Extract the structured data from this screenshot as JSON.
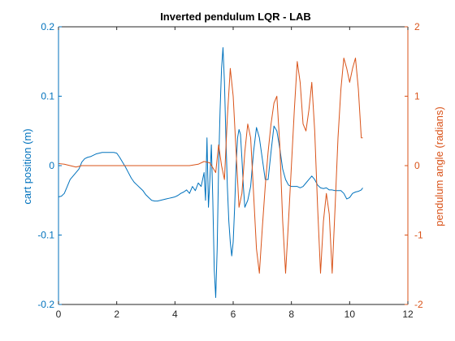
{
  "chart_data": {
    "type": "line",
    "title": "Inverted pendulum LQR - LAB",
    "xlabel": "",
    "xlim": [
      0,
      12
    ],
    "xticks": [
      0,
      2,
      4,
      6,
      8,
      10,
      12
    ],
    "left_axis": {
      "label": "cart position (m)",
      "ylim": [
        -0.2,
        0.2
      ],
      "ticks": [
        -0.2,
        -0.1,
        0,
        0.1,
        0.2
      ],
      "tick_labels": [
        "-0.2",
        "-0.1",
        "0",
        "0.1",
        "0.2"
      ],
      "color": "#0072BD"
    },
    "right_axis": {
      "label": "pendulum angle (radians)",
      "ylim": [
        -2,
        2
      ],
      "ticks": [
        -2,
        -1,
        0,
        1,
        2
      ],
      "tick_labels": [
        "-2",
        "-1",
        "0",
        "1",
        "2"
      ],
      "color": "#D95319"
    },
    "grid": false,
    "series": [
      {
        "axis": "left",
        "color": "#0072BD",
        "x": [
          0.0,
          0.1,
          0.2,
          0.3,
          0.4,
          0.5,
          0.6,
          0.7,
          0.8,
          0.9,
          1.0,
          1.1,
          1.2,
          1.3,
          1.4,
          1.5,
          1.6,
          1.7,
          1.8,
          1.9,
          2.0,
          2.1,
          2.2,
          2.3,
          2.4,
          2.5,
          2.6,
          2.7,
          2.8,
          2.9,
          3.0,
          3.1,
          3.2,
          3.3,
          3.4,
          3.5,
          3.6,
          3.7,
          3.8,
          3.9,
          4.0,
          4.1,
          4.2,
          4.3,
          4.4,
          4.5,
          4.6,
          4.7,
          4.8,
          4.9,
          5.0,
          5.05,
          5.1,
          5.15,
          5.2,
          5.25,
          5.3,
          5.35,
          5.4,
          5.45,
          5.5,
          5.55,
          5.6,
          5.65,
          5.7,
          5.75,
          5.8,
          5.85,
          5.9,
          5.95,
          6.0,
          6.05,
          6.1,
          6.15,
          6.2,
          6.25,
          6.3,
          6.35,
          6.4,
          6.5,
          6.6,
          6.7,
          6.8,
          6.9,
          7.0,
          7.1,
          7.2,
          7.3,
          7.4,
          7.5,
          7.6,
          7.7,
          7.8,
          7.9,
          8.0,
          8.1,
          8.2,
          8.3,
          8.4,
          8.5,
          8.6,
          8.7,
          8.8,
          8.9,
          9.0,
          9.1,
          9.2,
          9.3,
          9.4,
          9.5,
          9.6,
          9.7,
          9.8,
          9.9,
          10.0,
          10.1,
          10.2,
          10.3,
          10.4,
          10.45
        ],
        "y": [
          -0.045,
          -0.044,
          -0.04,
          -0.03,
          -0.02,
          -0.015,
          -0.01,
          -0.005,
          0.005,
          0.01,
          0.012,
          0.013,
          0.015,
          0.017,
          0.018,
          0.019,
          0.019,
          0.019,
          0.019,
          0.019,
          0.018,
          0.012,
          0.005,
          -0.002,
          -0.01,
          -0.018,
          -0.024,
          -0.028,
          -0.032,
          -0.036,
          -0.042,
          -0.046,
          -0.05,
          -0.051,
          -0.051,
          -0.05,
          -0.049,
          -0.048,
          -0.047,
          -0.046,
          -0.045,
          -0.043,
          -0.04,
          -0.038,
          -0.035,
          -0.04,
          -0.03,
          -0.036,
          -0.025,
          -0.03,
          -0.01,
          -0.05,
          0.04,
          -0.06,
          -0.02,
          0.03,
          -0.05,
          -0.15,
          -0.19,
          -0.12,
          0.0,
          0.08,
          0.14,
          0.17,
          0.12,
          0.04,
          -0.03,
          -0.08,
          -0.11,
          -0.13,
          -0.11,
          -0.06,
          0.0,
          0.04,
          0.052,
          0.045,
          0.01,
          -0.03,
          -0.06,
          -0.05,
          -0.03,
          0.02,
          0.055,
          0.04,
          0.01,
          -0.02,
          -0.02,
          0.02,
          0.057,
          0.05,
          0.025,
          -0.005,
          -0.02,
          -0.028,
          -0.03,
          -0.03,
          -0.03,
          -0.032,
          -0.03,
          -0.025,
          -0.02,
          -0.015,
          -0.02,
          -0.028,
          -0.032,
          -0.033,
          -0.032,
          -0.035,
          -0.035,
          -0.036,
          -0.036,
          -0.036,
          -0.04,
          -0.048,
          -0.046,
          -0.04,
          -0.038,
          -0.037,
          -0.035,
          -0.032
        ]
      },
      {
        "axis": "right",
        "color": "#D95319",
        "x": [
          0.0,
          0.2,
          0.4,
          0.6,
          0.8,
          1.0,
          1.5,
          2.0,
          2.5,
          3.0,
          3.5,
          4.0,
          4.5,
          4.8,
          5.0,
          5.2,
          5.4,
          5.5,
          5.6,
          5.7,
          5.8,
          5.9,
          6.0,
          6.1,
          6.2,
          6.3,
          6.4,
          6.5,
          6.6,
          6.7,
          6.8,
          6.9,
          7.0,
          7.1,
          7.2,
          7.3,
          7.4,
          7.5,
          7.6,
          7.7,
          7.8,
          7.9,
          8.0,
          8.1,
          8.2,
          8.3,
          8.4,
          8.5,
          8.6,
          8.7,
          8.8,
          8.9,
          9.0,
          9.1,
          9.2,
          9.3,
          9.4,
          9.5,
          9.6,
          9.7,
          9.8,
          9.9,
          10.0,
          10.1,
          10.2,
          10.3,
          10.4,
          10.45
        ],
        "y": [
          0.03,
          0.02,
          0.0,
          -0.02,
          0.0,
          0.0,
          0.0,
          0.0,
          0.0,
          0.0,
          0.0,
          0.0,
          0.0,
          0.02,
          0.06,
          0.04,
          -0.1,
          0.3,
          0.0,
          -0.2,
          0.7,
          1.4,
          1.0,
          0.2,
          -0.6,
          -0.4,
          0.2,
          0.6,
          0.4,
          -0.4,
          -1.2,
          -1.55,
          -0.9,
          -0.3,
          0.2,
          0.6,
          0.9,
          1.0,
          0.3,
          -0.8,
          -1.55,
          -0.8,
          0.0,
          0.8,
          1.5,
          1.2,
          0.6,
          0.5,
          0.8,
          1.2,
          0.5,
          -0.6,
          -1.55,
          -0.8,
          -0.4,
          -0.7,
          -1.55,
          -0.6,
          0.4,
          1.1,
          1.55,
          1.4,
          1.2,
          1.4,
          1.55,
          1.1,
          0.4,
          0.4
        ]
      }
    ]
  }
}
